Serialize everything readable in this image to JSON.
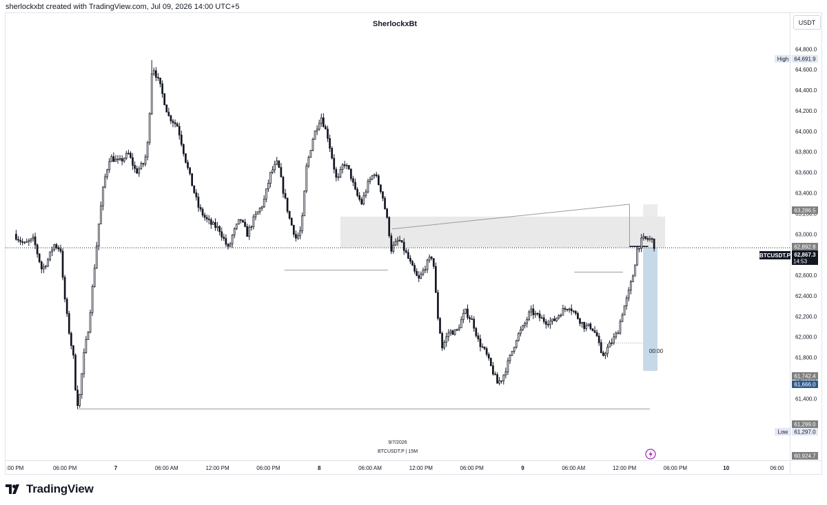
{
  "header": {
    "attribution": "sherlockxbt created with TradingView.com, Jul 09, 2026 14:00 UTC+5",
    "chart_title": "SherlockxBt",
    "currency_button": "USDT"
  },
  "footer": {
    "brand": "TradingView",
    "date_caption": "9/7/2026",
    "symbol_caption": "BTCUSDT.P | 15M"
  },
  "price_labels": {
    "high_tag": "High",
    "high_value": "64,691.9",
    "low_tag": "Low",
    "low_value": "61,297.0",
    "level_1": "63,286.5",
    "level_2": "62,892.8",
    "current_symbol": "BTCUSDT.P",
    "current_price": "62,867.3",
    "countdown": "14:53",
    "level_3": "61,742.4",
    "level_4": "61,666.0",
    "level_5": "61,299.0",
    "level_6": "60,924.7",
    "marker_time": "00:00"
  },
  "colors": {
    "candle": "#131722",
    "zone_gray": "#e9e9e9",
    "zone_blue": "#c7d9e8",
    "line_gray": "#9a9a9a",
    "label_dark": "#131722",
    "label_gray": "#7f7f7f",
    "label_blue": "#2962ff",
    "label_light": "#e3e8f3",
    "accent_purple": "#9c27b0"
  },
  "icons": {
    "alert": "lightning-bolt-icon",
    "logo": "tradingview-logo-icon"
  },
  "chart_data": {
    "type": "candlestick",
    "symbol": "BTCUSDT.P",
    "timeframe": "15M",
    "title": "SherlockxBt",
    "y_axis": {
      "side": "right",
      "ticks": [
        61400,
        61600,
        61800,
        62000,
        62200,
        62400,
        62600,
        62800,
        63000,
        63200,
        63400,
        63600,
        63800,
        64000,
        64200,
        64400,
        64600,
        64800
      ],
      "tick_labels": [
        "61,400.0",
        "61,600.0",
        "61,800.0",
        "62,000.0",
        "62,200.0",
        "62,400.0",
        "62,600.0",
        "62,800.0",
        "63,000.0",
        "63,200.0",
        "63,400.0",
        "63,600.0",
        "63,800.0",
        "64,000.0",
        "64,200.0",
        "64,400.0",
        "64,600.0",
        "64,800.0"
      ],
      "range": [
        60800,
        65150
      ]
    },
    "x_axis": {
      "range_hours": [
        -1,
        91.5
      ],
      "tick_hours": [
        0,
        6,
        12,
        18,
        24,
        30,
        36,
        42,
        48,
        54,
        60,
        66,
        72,
        78,
        84,
        90
      ],
      "tick_labels": [
        ":00 PM",
        "06:00 PM",
        "7",
        "06:00 AM",
        "12:00 PM",
        "06:00 PM",
        "8",
        "06:00 AM",
        "12:00 PM",
        "06:00 PM",
        "9",
        "06:00 AM",
        "12:00 PM",
        "06:00 PM",
        "10",
        "06:00"
      ]
    },
    "anchors": [
      [
        0,
        63000
      ],
      [
        1.2,
        62900
      ],
      [
        2.3,
        62950
      ],
      [
        3.3,
        62650
      ],
      [
        4,
        62750
      ],
      [
        4.7,
        62900
      ],
      [
        5.5,
        62850
      ],
      [
        5.8,
        62500
      ],
      [
        6.4,
        62100
      ],
      [
        7,
        61800
      ],
      [
        7.3,
        61450
      ],
      [
        7.6,
        61310
      ],
      [
        8.2,
        61800
      ],
      [
        8.8,
        62100
      ],
      [
        9.4,
        62600
      ],
      [
        10,
        63100
      ],
      [
        10.6,
        63500
      ],
      [
        11.3,
        63750
      ],
      [
        12.4,
        63700
      ],
      [
        13.5,
        63780
      ],
      [
        14.4,
        63600
      ],
      [
        15.4,
        63700
      ],
      [
        15.8,
        63900
      ],
      [
        16.3,
        64650
      ],
      [
        17.2,
        64450
      ],
      [
        18.2,
        64150
      ],
      [
        19.3,
        64050
      ],
      [
        20.3,
        63700
      ],
      [
        21.1,
        63450
      ],
      [
        21.8,
        63250
      ],
      [
        22.6,
        63150
      ],
      [
        23.2,
        63100
      ],
      [
        24.2,
        63050
      ],
      [
        25.3,
        62850
      ],
      [
        25.8,
        63000
      ],
      [
        26.7,
        63150
      ],
      [
        27.5,
        63000
      ],
      [
        28.3,
        63150
      ],
      [
        29.4,
        63300
      ],
      [
        30.3,
        63600
      ],
      [
        31.1,
        63700
      ],
      [
        31.8,
        63400
      ],
      [
        32.5,
        63150
      ],
      [
        33.3,
        62950
      ],
      [
        33.9,
        63050
      ],
      [
        34.5,
        63650
      ],
      [
        35.3,
        63950
      ],
      [
        36.2,
        64150
      ],
      [
        37,
        63950
      ],
      [
        37.5,
        63750
      ],
      [
        38.1,
        63500
      ],
      [
        38.9,
        63700
      ],
      [
        39.6,
        63600
      ],
      [
        40.3,
        63400
      ],
      [
        41,
        63300
      ],
      [
        41.8,
        63500
      ],
      [
        42.5,
        63600
      ],
      [
        43.4,
        63400
      ],
      [
        44.1,
        63100
      ],
      [
        44.5,
        62850
      ],
      [
        45.4,
        62950
      ],
      [
        46.3,
        62800
      ],
      [
        47.1,
        62650
      ],
      [
        47.7,
        62550
      ],
      [
        48.6,
        62700
      ],
      [
        49.4,
        62800
      ],
      [
        49.9,
        62250
      ],
      [
        50.5,
        61900
      ],
      [
        51.3,
        62050
      ],
      [
        52.2,
        62050
      ],
      [
        53.2,
        62250
      ],
      [
        54.1,
        62150
      ],
      [
        54.8,
        61950
      ],
      [
        55.6,
        61850
      ],
      [
        56.3,
        61700
      ],
      [
        57,
        61550
      ],
      [
        57.6,
        61600
      ],
      [
        58.5,
        61800
      ],
      [
        59.3,
        62000
      ],
      [
        60.1,
        62100
      ],
      [
        60.9,
        62250
      ],
      [
        61.8,
        62200
      ],
      [
        62.7,
        62150
      ],
      [
        63.6,
        62150
      ],
      [
        64.6,
        62250
      ],
      [
        65.5,
        62300
      ],
      [
        66.4,
        62200
      ],
      [
        67.3,
        62100
      ],
      [
        68.1,
        62100
      ],
      [
        68.8,
        62000
      ],
      [
        69.3,
        61800
      ],
      [
        69.9,
        61880
      ],
      [
        70.5,
        61950
      ],
      [
        71.2,
        62050
      ],
      [
        71.8,
        62250
      ],
      [
        72.4,
        62400
      ],
      [
        73,
        62600
      ],
      [
        73.5,
        62850
      ],
      [
        74.1,
        62950
      ],
      [
        74.6,
        62950
      ],
      [
        75.2,
        62950
      ],
      [
        75.6,
        62870
      ]
    ],
    "series_low": 61297.0,
    "series_high": 64691.9,
    "last_price": 62867.3,
    "zones": [
      {
        "type": "gray_box",
        "x": [
          38.5,
          76.8
        ],
        "y": [
          62870,
          63170
        ]
      },
      {
        "type": "gray_box",
        "x": [
          74.2,
          75.9
        ],
        "y": [
          62880,
          63290
        ]
      },
      {
        "type": "blue_box",
        "x": [
          74.2,
          75.9
        ],
        "y": [
          61670,
          62870
        ]
      }
    ],
    "lines": [
      {
        "x": [
          7.6,
          75.0
        ],
        "y": [
          61299,
          61299
        ]
      },
      {
        "x": [
          31.9,
          44.1
        ],
        "y": [
          62650,
          62650
        ]
      },
      {
        "x": [
          66.1,
          71.8
        ],
        "y": [
          62630,
          62630
        ]
      },
      {
        "x": [
          44.6,
          72.6
        ],
        "y": [
          63050,
          63290
        ]
      },
      {
        "x": [
          72.6,
          72.6
        ],
        "y": [
          63290,
          62870
        ]
      },
      {
        "x": [
          72.6,
          74.8
        ],
        "y": [
          62880,
          62880
        ]
      },
      {
        "x": [
          68.8,
          74.2
        ],
        "y": [
          61940,
          61940
        ]
      }
    ]
  }
}
